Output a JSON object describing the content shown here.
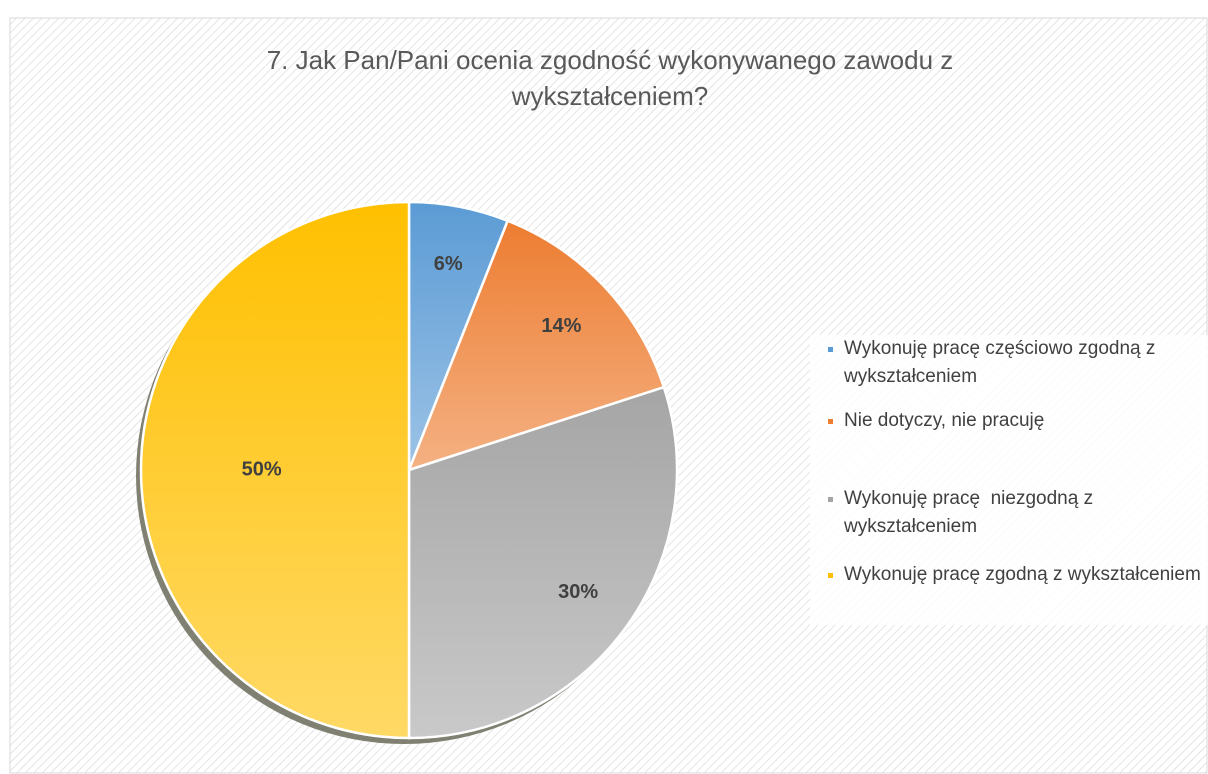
{
  "chart_data": {
    "type": "pie",
    "title": "7. Jak Pan/Pani ocenia zgodność wykonywanego zawodu z wykształceniem?",
    "categories": [
      "Wykonuję pracę częściowo zgodną z wykształceniem",
      "Nie dotyczy, nie pracuję",
      "Wykonuję pracę  niezgodną z wykształceniem",
      "Wykonuję pracę zgodną z wykształceniem"
    ],
    "values": [
      6,
      14,
      30,
      50
    ],
    "value_labels": [
      "6%",
      "14%",
      "30%",
      "50%"
    ],
    "colors": [
      "#5b9bd5",
      "#ed7d31",
      "#a5a5a5",
      "#ffc000"
    ],
    "legend": "right"
  }
}
